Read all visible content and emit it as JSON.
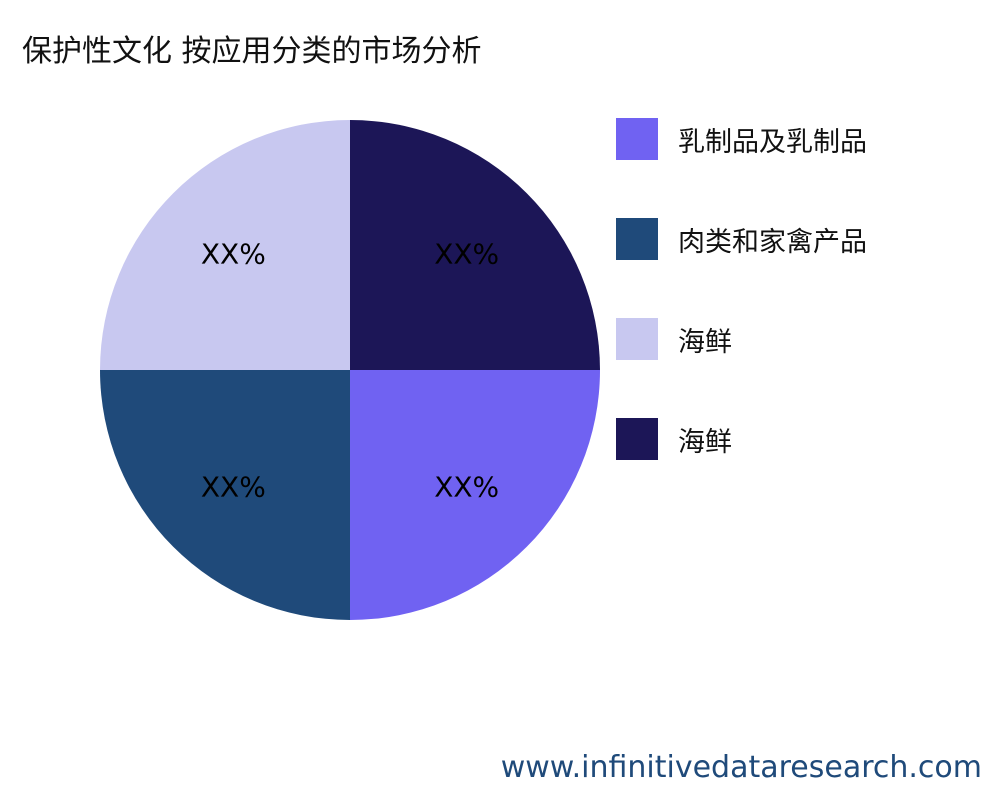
{
  "chart_data": {
    "type": "pie",
    "title": "保护性文化 按应用分类的市场分析",
    "categories": [
      "乳制品及乳制品",
      "肉类和家禽产品",
      "海鲜",
      "海鲜"
    ],
    "values": [
      25,
      25,
      25,
      25
    ],
    "data_labels": [
      "XX%",
      "XX%",
      "XX%",
      "XX%"
    ],
    "colors": [
      "#7062f2",
      "#1f4a7a",
      "#c8c8f0",
      "#1c1657"
    ],
    "legend_placement": "right"
  },
  "footer": "www.infinitivedataresearch.com"
}
